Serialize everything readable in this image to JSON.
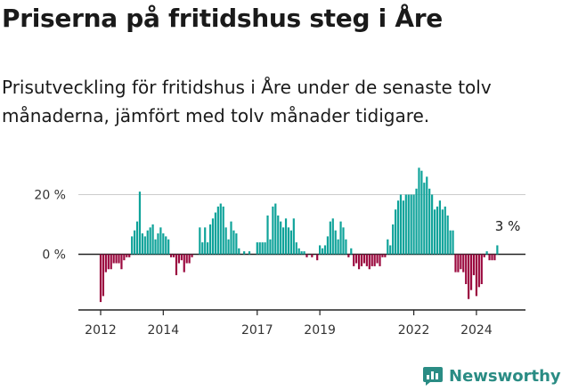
{
  "header": {
    "title": "Priserna på fritidshus steg i Åre",
    "subtitle": "Prisutveckling för fritidshus i Åre under de senaste tolv månaderna, jämfört med tolv månader tidigare."
  },
  "brand": {
    "name": "Newsworthy",
    "icon": "newsworthy-logo-icon",
    "color": "#2a8c84"
  },
  "colors": {
    "positive": "#0fa39a",
    "negative": "#9b0a3f",
    "axis": "#222222",
    "grid": "#cccccc"
  },
  "chart_data": {
    "type": "bar",
    "title": "",
    "xlabel": "",
    "ylabel": "",
    "y_unit": "%",
    "ylim": [
      -20,
      35
    ],
    "y_ticks": [
      {
        "value": 0,
        "label": "0 %"
      },
      {
        "value": 20,
        "label": "20 %"
      }
    ],
    "x_ticks": [
      {
        "index": 0,
        "label": "2012"
      },
      {
        "index": 24,
        "label": "2014"
      },
      {
        "index": 60,
        "label": "2017"
      },
      {
        "index": 84,
        "label": "2019"
      },
      {
        "index": 120,
        "label": "2022"
      },
      {
        "index": 144,
        "label": "2024"
      }
    ],
    "start": "2012-01",
    "frequency": "monthly",
    "annotation": {
      "text": "3 %",
      "index": 156,
      "value": 3
    },
    "values": [
      -16,
      -14,
      -6,
      -5,
      -5,
      -3,
      -3,
      -3,
      -5,
      -2,
      -1,
      -1,
      6,
      8,
      11,
      21,
      7,
      6,
      8,
      9,
      10,
      5,
      7,
      9,
      7,
      6,
      5,
      -1,
      -1,
      -7,
      -3,
      -2,
      -6,
      -3,
      -3,
      -1,
      0,
      0,
      9,
      4,
      9,
      4,
      10,
      12,
      14,
      16,
      17,
      16,
      9,
      5,
      11,
      8,
      7,
      2,
      0,
      1,
      0,
      1,
      0,
      0,
      4,
      4,
      4,
      4,
      13,
      5,
      16,
      17,
      13,
      11,
      9,
      12,
      9,
      8,
      12,
      4,
      2,
      1,
      1,
      -1,
      0,
      -1,
      0,
      -2,
      3,
      2,
      3,
      6,
      11,
      12,
      8,
      5,
      11,
      9,
      5,
      -1,
      2,
      -4,
      -3,
      -5,
      -4,
      -3,
      -4,
      -5,
      -4,
      -4,
      -3,
      -4,
      -1,
      -1,
      5,
      3,
      10,
      15,
      18,
      20,
      18,
      20,
      20,
      20,
      20,
      22,
      29,
      28,
      24,
      26,
      22,
      20,
      15,
      16,
      18,
      15,
      16,
      13,
      8,
      8,
      -6,
      -6,
      -5,
      -6,
      -10,
      -15,
      -12,
      -7,
      -14,
      -11,
      -10,
      -1,
      1,
      -2,
      -2,
      -2,
      3
    ]
  }
}
